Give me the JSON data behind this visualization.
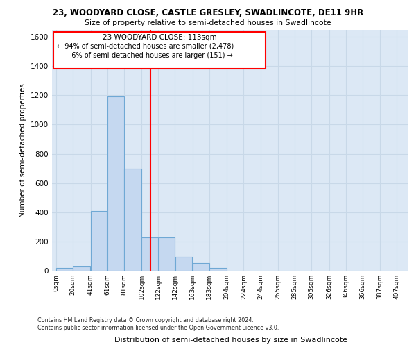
{
  "title1": "23, WOODYARD CLOSE, CASTLE GRESLEY, SWADLINCOTE, DE11 9HR",
  "title2": "Size of property relative to semi-detached houses in Swadlincote",
  "xlabel": "Distribution of semi-detached houses by size in Swadlincote",
  "ylabel": "Number of semi-detached properties",
  "footnote": "Contains HM Land Registry data © Crown copyright and database right 2024.\nContains public sector information licensed under the Open Government Licence v3.0.",
  "property_size": 113,
  "annotation_title": "23 WOODYARD CLOSE: 113sqm",
  "annotation_line1": "← 94% of semi-detached houses are smaller (2,478)",
  "annotation_line2": "   6% of semi-detached houses are larger (151) →",
  "bar_left_edges": [
    0,
    20,
    41,
    61,
    81,
    102,
    122,
    142,
    163,
    183,
    204,
    224,
    244,
    265,
    285,
    305,
    326,
    346,
    366,
    387
  ],
  "bar_heights": [
    20,
    30,
    410,
    1190,
    700,
    230,
    230,
    95,
    50,
    20,
    0,
    0,
    0,
    0,
    0,
    0,
    0,
    0,
    0,
    0
  ],
  "bin_width": 20,
  "bar_color": "#c5d8f0",
  "bar_edge_color": "#6fa8d4",
  "grid_color": "#c8d8e8",
  "bg_color": "#dce8f5",
  "red_line_x": 113,
  "ylim": [
    0,
    1650
  ],
  "yticks": [
    0,
    200,
    400,
    600,
    800,
    1000,
    1200,
    1400,
    1600
  ],
  "xtick_labels": [
    "0sqm",
    "20sqm",
    "41sqm",
    "61sqm",
    "81sqm",
    "102sqm",
    "122sqm",
    "142sqm",
    "163sqm",
    "183sqm",
    "204sqm",
    "224sqm",
    "244sqm",
    "265sqm",
    "285sqm",
    "305sqm",
    "326sqm",
    "346sqm",
    "366sqm",
    "387sqm",
    "407sqm"
  ],
  "xtick_positions": [
    0,
    20,
    41,
    61,
    81,
    102,
    122,
    142,
    163,
    183,
    204,
    224,
    244,
    265,
    285,
    305,
    326,
    346,
    366,
    387,
    407
  ],
  "xlim": [
    -5,
    420
  ]
}
